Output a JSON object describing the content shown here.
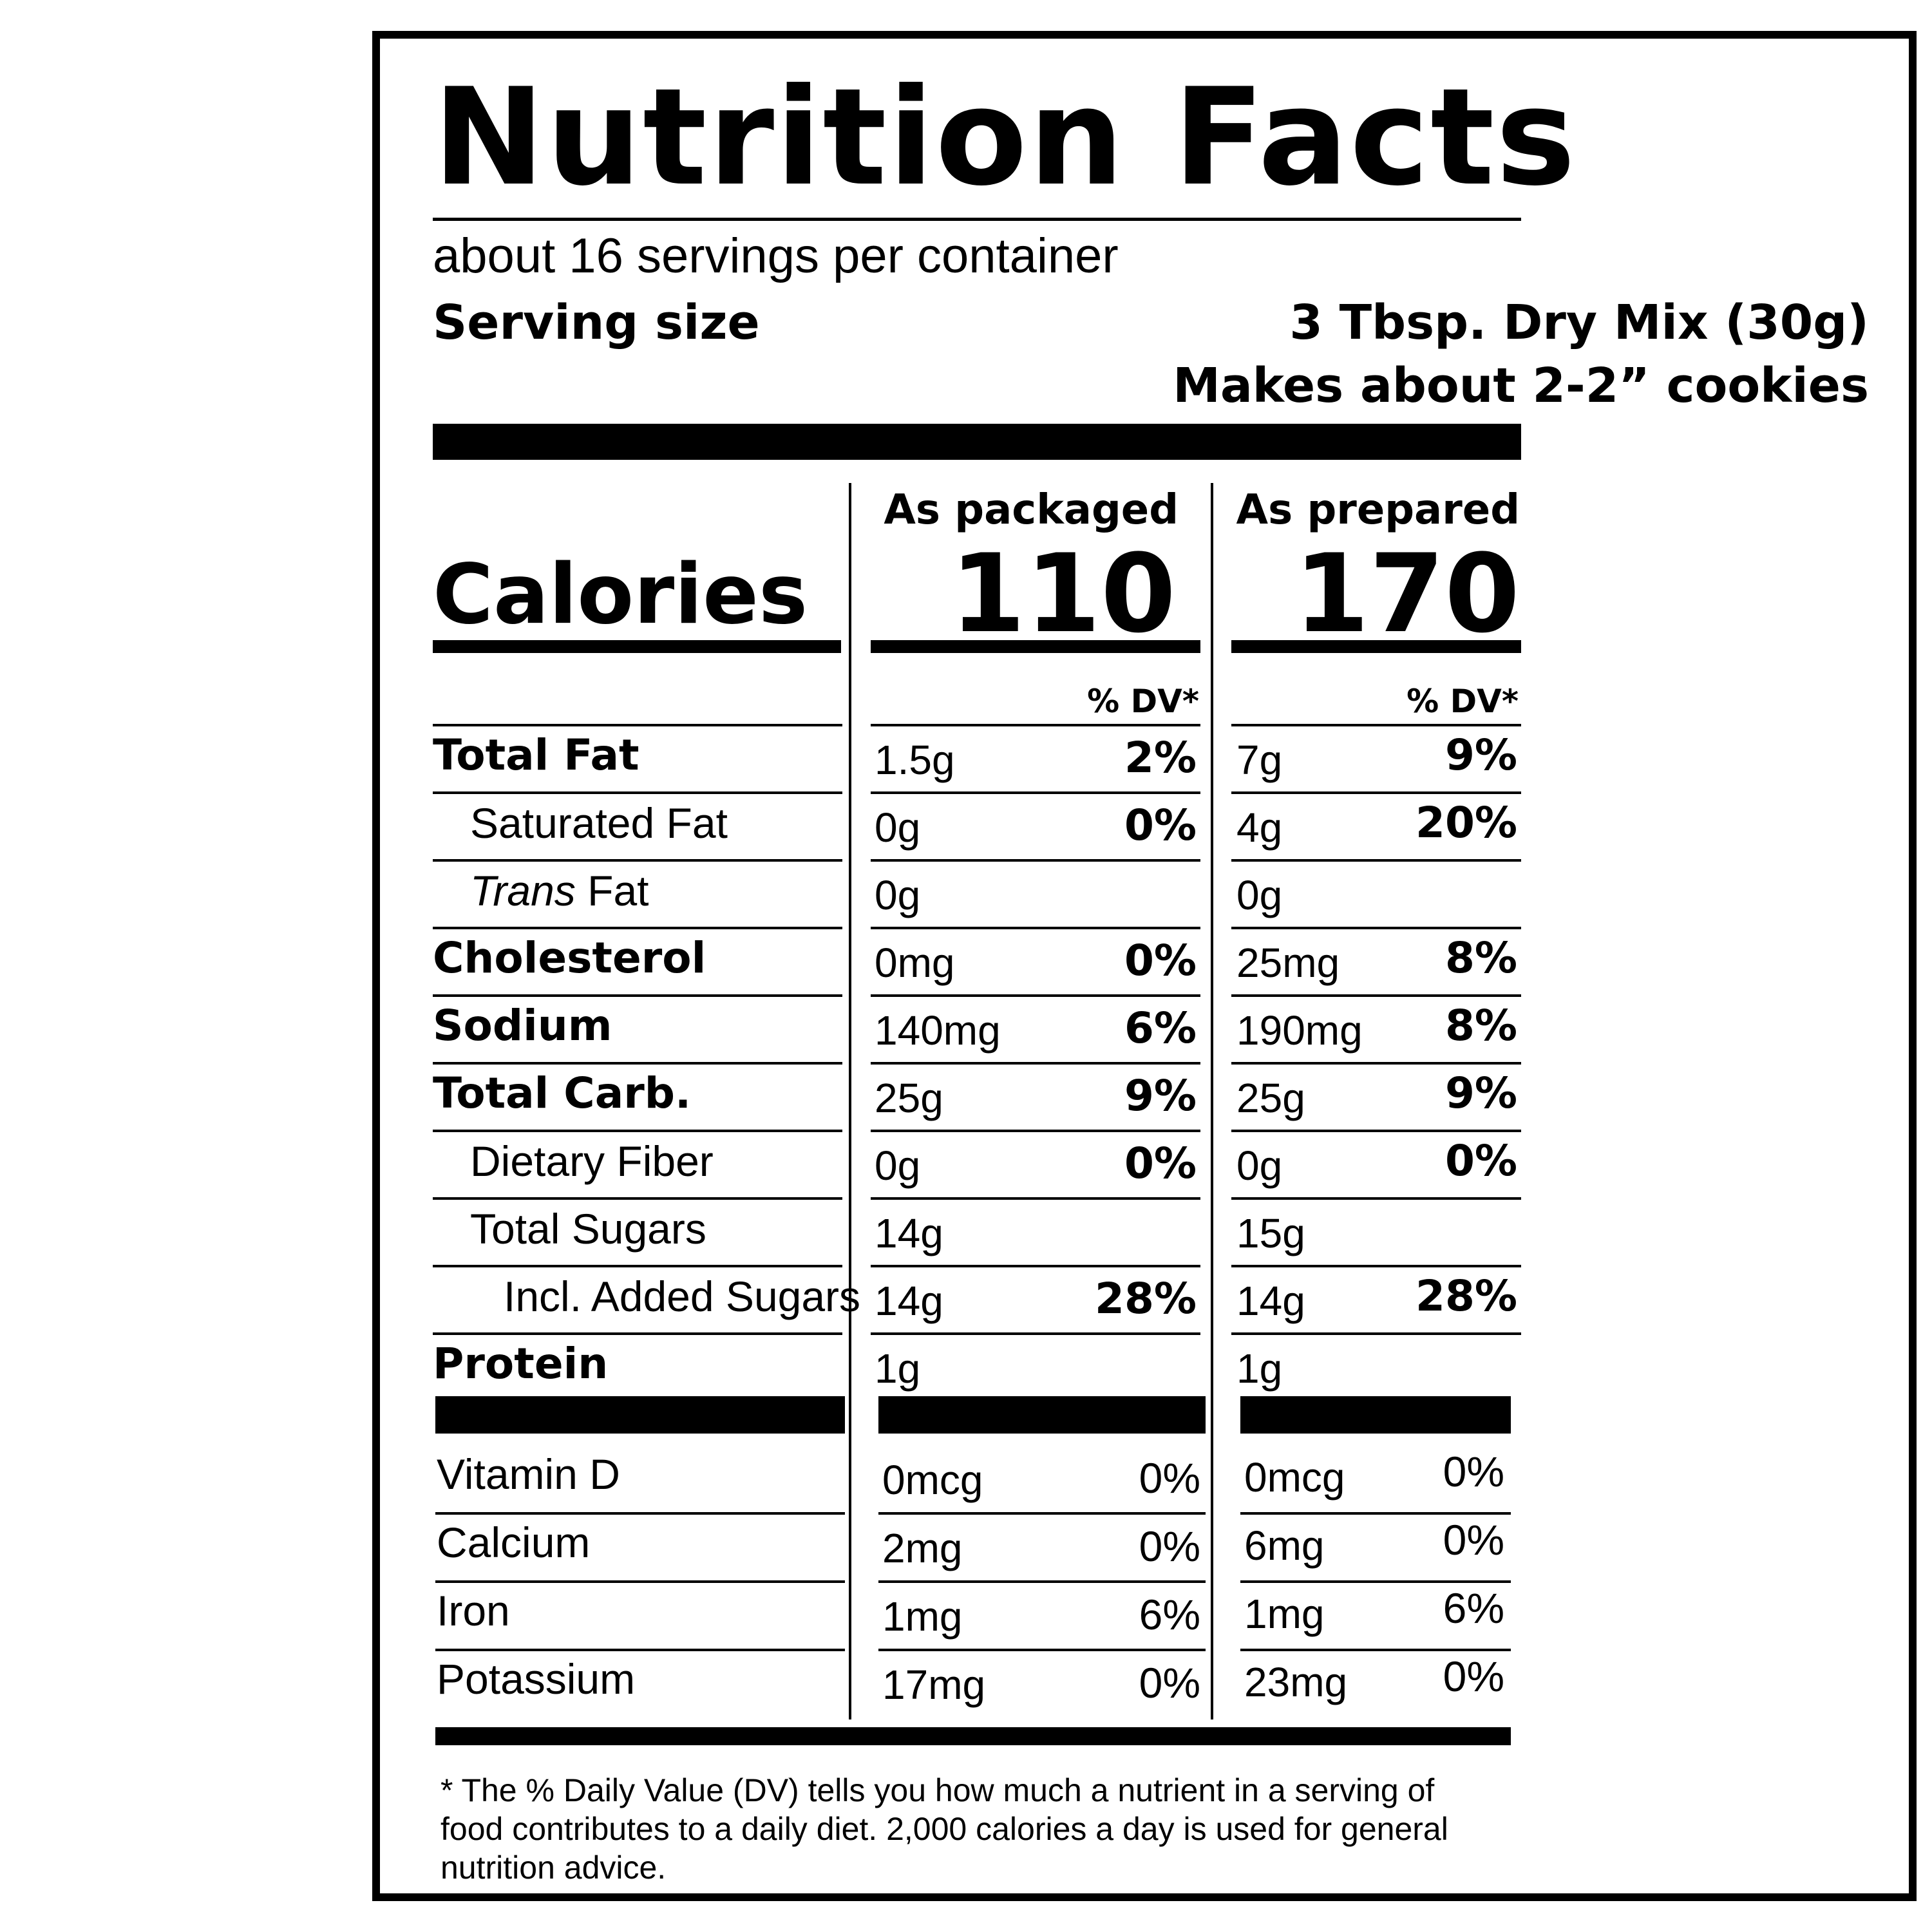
{
  "title": "Nutrition Facts",
  "servings_per_container": "about 16 servings per container",
  "serving_size_label": "Serving size",
  "serving_size_value": "3 Tbsp. Dry Mix (30g)",
  "makes": "Makes about 2-2” cookies",
  "columns": [
    {
      "heading": "As packaged",
      "calories": "110",
      "dv_label": "% DV*"
    },
    {
      "heading": "As prepared",
      "calories": "170",
      "dv_label": "% DV*"
    }
  ],
  "calories_label": "Calories",
  "nutrients": [
    {
      "name": "Total Fat",
      "style": "bold",
      "packaged_amount": "1.5g",
      "packaged_dv": "2%",
      "prepared_amount": "7g",
      "prepared_dv": "9%"
    },
    {
      "name": "Saturated Fat",
      "style": "indent1",
      "packaged_amount": "0g",
      "packaged_dv": "0%",
      "prepared_amount": "4g",
      "prepared_dv": "20%"
    },
    {
      "name_italic": "Trans",
      "name": " Fat",
      "style": "indent1",
      "packaged_amount": "0g",
      "packaged_dv": "",
      "prepared_amount": "0g",
      "prepared_dv": ""
    },
    {
      "name": "Cholesterol",
      "style": "bold",
      "packaged_amount": "0mg",
      "packaged_dv": "0%",
      "prepared_amount": "25mg",
      "prepared_dv": "8%"
    },
    {
      "name": "Sodium",
      "style": "bold",
      "packaged_amount": "140mg",
      "packaged_dv": "6%",
      "prepared_amount": "190mg",
      "prepared_dv": "8%"
    },
    {
      "name": "Total Carb.",
      "style": "bold",
      "packaged_amount": "25g",
      "packaged_dv": "9%",
      "prepared_amount": "25g",
      "prepared_dv": "9%"
    },
    {
      "name": "Dietary Fiber",
      "style": "indent1",
      "packaged_amount": "0g",
      "packaged_dv": "0%",
      "prepared_amount": "0g",
      "prepared_dv": "0%"
    },
    {
      "name": "Total Sugars",
      "style": "indent1",
      "packaged_amount": "14g",
      "packaged_dv": "",
      "prepared_amount": "15g",
      "prepared_dv": ""
    },
    {
      "name": "Incl. Added Sugars",
      "style": "indent2",
      "packaged_amount": "14g",
      "packaged_dv": "28%",
      "prepared_amount": "14g",
      "prepared_dv": "28%"
    },
    {
      "name": "Protein",
      "style": "bold",
      "packaged_amount": "1g",
      "packaged_dv": "",
      "prepared_amount": "1g",
      "prepared_dv": ""
    }
  ],
  "vitamins": [
    {
      "name": "Vitamin D",
      "packaged_amount": "0mcg",
      "packaged_dv": "0%",
      "prepared_amount": "0mcg",
      "prepared_dv": "0%"
    },
    {
      "name": "Calcium",
      "packaged_amount": "2mg",
      "packaged_dv": "0%",
      "prepared_amount": "6mg",
      "prepared_dv": "0%"
    },
    {
      "name": "Iron",
      "packaged_amount": "1mg",
      "packaged_dv": "6%",
      "prepared_amount": "1mg",
      "prepared_dv": "6%"
    },
    {
      "name": "Potassium",
      "packaged_amount": "17mg",
      "packaged_dv": "0%",
      "prepared_amount": "23mg",
      "prepared_dv": "0%"
    }
  ],
  "footnote": "* The % Daily Value (DV) tells you how much a nutrient in a serving of food contributes to a daily diet. 2,000 calories a day is used for general nutrition advice."
}
